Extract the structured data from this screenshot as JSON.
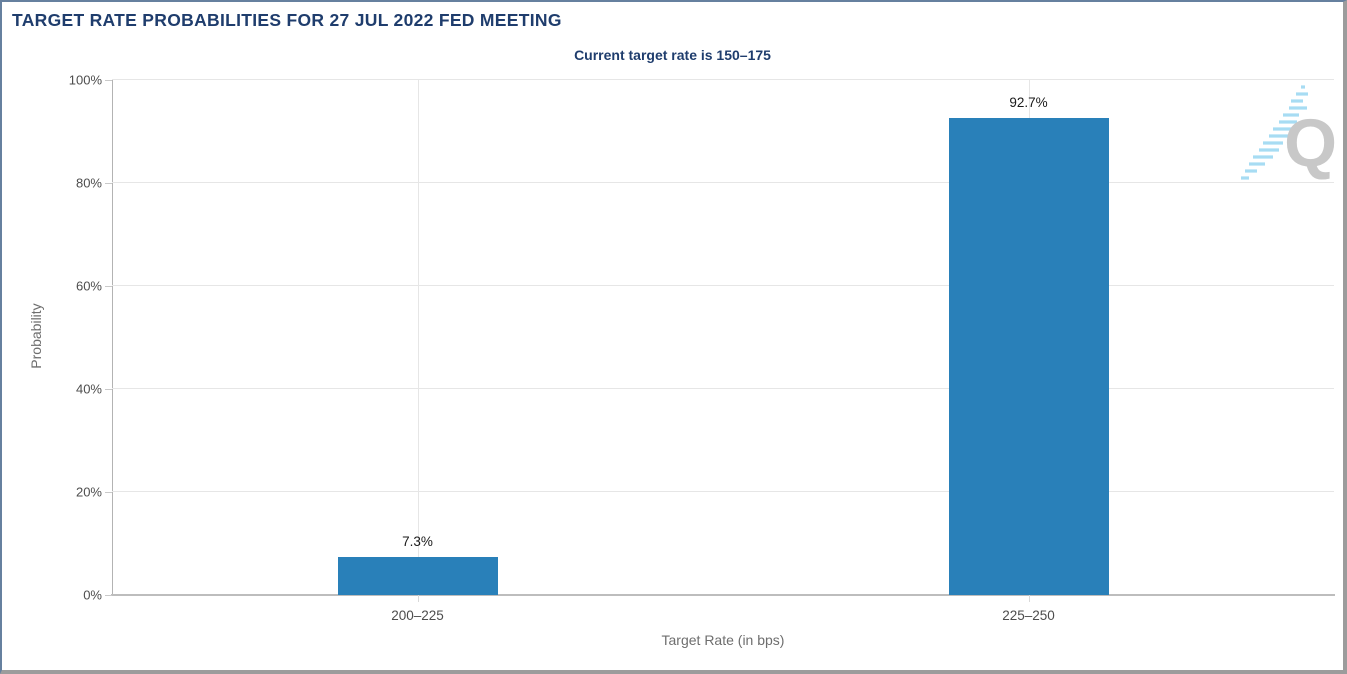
{
  "chart_data": {
    "type": "bar",
    "title": "TARGET RATE PROBABILITIES FOR 27 JUL 2022 FED MEETING",
    "subtitle": "Current target rate is 150–175",
    "categories": [
      "200–225",
      "225–250"
    ],
    "values": [
      7.3,
      92.7
    ],
    "value_labels": [
      "7.3%",
      "92.7%"
    ],
    "xlabel": "Target Rate (in bps)",
    "ylabel": "Probability",
    "ylim": [
      0,
      100
    ],
    "ytick_values": [
      0,
      20,
      40,
      60,
      80,
      100
    ],
    "ytick_labels": [
      "0%",
      "20%",
      "40%",
      "60%",
      "80%",
      "100%"
    ],
    "grid": "horizontal gridlines at 20% intervals plus vertical gridline at each category center",
    "legend": "none",
    "bar_color": "#2980b9"
  },
  "watermark": {
    "letter": "Q",
    "letter_color": "#c8c8c8",
    "stripe_color": "#9ed9f2"
  },
  "colors": {
    "title_text": "#1f3d6d",
    "axis_text": "#4d4d4d",
    "axis_title_text": "#6e6e6e",
    "grid_line": "#e6e6e6",
    "axis_line": "#b3b3b3",
    "frame_border_top_left": "#66809f",
    "frame_border_bottom_right": "#9c9c9c",
    "background": "#ffffff"
  }
}
